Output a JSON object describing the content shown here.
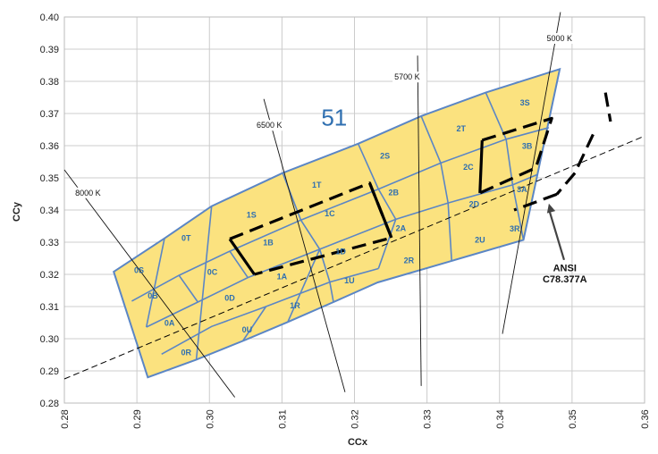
{
  "chart_data": {
    "type": "scatter",
    "title": "",
    "xlabel": "CCx",
    "ylabel": "CCy",
    "xlim": [
      0.28,
      0.36
    ],
    "ylim": [
      0.28,
      0.4
    ],
    "grid": true,
    "x_ticks": [
      "0.28",
      "0.29",
      "0.30",
      "0.31",
      "0.32",
      "0.33",
      "0.34",
      "0.35",
      "0.36"
    ],
    "y_ticks": [
      "0.28",
      "0.29",
      "0.30",
      "0.31",
      "0.32",
      "0.33",
      "0.34",
      "0.35",
      "0.36",
      "0.37",
      "0.38",
      "0.39",
      "0.40"
    ],
    "colors": {
      "bin_fill": "#fbe27f",
      "bin_stroke": "#5b86c5",
      "bin_label": "#2f6fb0",
      "grid": "#cccccc",
      "ansi_line": "#000000",
      "arrow": "#444444"
    },
    "outline": [
      [
        0.2868,
        0.3208
      ],
      [
        0.2938,
        0.3312
      ],
      [
        0.3003,
        0.3412
      ],
      [
        0.3101,
        0.3515
      ],
      [
        0.3205,
        0.3606
      ],
      [
        0.3292,
        0.3692
      ],
      [
        0.3381,
        0.3765
      ],
      [
        0.3483,
        0.3838
      ],
      [
        0.3448,
        0.3465
      ],
      [
        0.3433,
        0.3307
      ],
      [
        0.3334,
        0.3242
      ],
      [
        0.3232,
        0.3175
      ],
      [
        0.3171,
        0.3114
      ],
      [
        0.3108,
        0.3052
      ],
      [
        0.3046,
        0.2993
      ],
      [
        0.2982,
        0.2935
      ],
      [
        0.2915,
        0.288
      ],
      [
        0.2868,
        0.3208
      ]
    ],
    "bin_lines": [
      [
        [
          0.2893,
          0.3117
        ],
        [
          0.2958,
          0.3197
        ],
        [
          0.3028,
          0.3272
        ],
        [
          0.3126,
          0.3369
        ],
        [
          0.3233,
          0.3465
        ],
        [
          0.3319,
          0.3546
        ],
        [
          0.3409,
          0.362
        ],
        [
          0.3468,
          0.3656
        ]
      ],
      [
        [
          0.2913,
          0.3036
        ],
        [
          0.2984,
          0.3114
        ],
        [
          0.3053,
          0.319
        ],
        [
          0.3152,
          0.3278
        ],
        [
          0.3257,
          0.3371
        ],
        [
          0.3329,
          0.3422
        ],
        [
          0.3418,
          0.3478
        ],
        [
          0.3452,
          0.351
        ]
      ],
      [
        [
          0.2934,
          0.2952
        ],
        [
          0.3003,
          0.3038
        ],
        [
          0.3078,
          0.31
        ],
        [
          0.3166,
          0.3176
        ],
        [
          0.3233,
          0.3218
        ]
      ],
      [
        [
          0.2938,
          0.3312
        ],
        [
          0.2913,
          0.3036
        ]
      ],
      [
        [
          0.2984,
          0.3114
        ],
        [
          0.2958,
          0.3197
        ]
      ],
      [
        [
          0.3003,
          0.3412
        ],
        [
          0.2982,
          0.2935
        ]
      ],
      [
        [
          0.3053,
          0.319
        ],
        [
          0.3028,
          0.3272
        ]
      ],
      [
        [
          0.3046,
          0.2993
        ],
        [
          0.3078,
          0.31
        ]
      ],
      [
        [
          0.3101,
          0.3515
        ],
        [
          0.3126,
          0.3369
        ],
        [
          0.3152,
          0.3278
        ],
        [
          0.3166,
          0.3176
        ],
        [
          0.3171,
          0.3114
        ]
      ],
      [
        [
          0.3108,
          0.3052
        ],
        [
          0.3152,
          0.3278
        ]
      ],
      [
        [
          0.3205,
          0.3606
        ],
        [
          0.3233,
          0.3465
        ],
        [
          0.3257,
          0.3371
        ],
        [
          0.3233,
          0.3218
        ]
      ],
      [
        [
          0.3292,
          0.3692
        ],
        [
          0.3319,
          0.3546
        ],
        [
          0.3329,
          0.3422
        ],
        [
          0.3334,
          0.3242
        ]
      ],
      [
        [
          0.3381,
          0.3765
        ],
        [
          0.3409,
          0.362
        ],
        [
          0.3418,
          0.3478
        ],
        [
          0.3433,
          0.3307
        ]
      ]
    ],
    "ansi_quads": [
      [
        [
          0.3028,
          0.331
        ],
        [
          0.3221,
          0.3484
        ],
        [
          0.3251,
          0.3314
        ],
        [
          0.3062,
          0.32
        ]
      ],
      [
        [
          0.3376,
          0.3617
        ],
        [
          0.3472,
          0.3685
        ],
        [
          0.345,
          0.3531
        ],
        [
          0.3373,
          0.3453
        ]
      ],
      [
        [
          0.3546,
          0.3765
        ],
        [
          0.3553,
          0.3675
        ]
      ],
      [
        [
          0.3529,
          0.3635
        ],
        [
          0.3504,
          0.3515
        ]
      ],
      [
        [
          0.3504,
          0.3515
        ],
        [
          0.3479,
          0.3449
        ]
      ],
      [
        [
          0.3479,
          0.3449
        ],
        [
          0.342,
          0.34
        ]
      ]
    ],
    "ansi_dashes": [
      [
        [
          0.3028,
          0.331
        ],
        [
          0.3062,
          0.32
        ]
      ],
      [
        [
          0.3221,
          0.3484
        ],
        [
          0.3251,
          0.3314
        ]
      ],
      [
        [
          0.3376,
          0.3617
        ],
        [
          0.3373,
          0.3453
        ]
      ]
    ],
    "planckian": [
      [
        0.28,
        0.2875
      ],
      [
        0.36,
        0.363
      ]
    ],
    "isotherms": [
      {
        "label": "8000 K",
        "from": [
          0.28,
          0.3525
        ],
        "to": [
          0.3035,
          0.2818
        ],
        "label_at": [
          0.2815,
          0.3445
        ]
      },
      {
        "label": "6500 K",
        "from": [
          0.3075,
          0.3745
        ],
        "to": [
          0.3187,
          0.2834
        ],
        "label_at": [
          0.3065,
          0.3655
        ]
      },
      {
        "label": "5700 K",
        "from": [
          0.3287,
          0.388
        ],
        "to": [
          0.3292,
          0.2853
        ],
        "label_at": [
          0.3255,
          0.3805
        ]
      },
      {
        "label": "5000 K",
        "from": [
          0.3484,
          0.4015
        ],
        "to": [
          0.3404,
          0.3015
        ],
        "label_at": [
          0.3465,
          0.3925
        ]
      }
    ],
    "bins": [
      {
        "label": "0S",
        "at": [
          0.2903,
          0.3204
        ]
      },
      {
        "label": "0B",
        "at": [
          0.2922,
          0.3125
        ]
      },
      {
        "label": "0A",
        "at": [
          0.2945,
          0.304
        ]
      },
      {
        "label": "0R",
        "at": [
          0.2968,
          0.2948
        ]
      },
      {
        "label": "0T",
        "at": [
          0.2968,
          0.3304
        ]
      },
      {
        "label": "0C",
        "at": [
          0.3004,
          0.3198
        ]
      },
      {
        "label": "0D",
        "at": [
          0.3028,
          0.3118
        ]
      },
      {
        "label": "0U",
        "at": [
          0.3052,
          0.302
        ]
      },
      {
        "label": "1S",
        "at": [
          0.3058,
          0.3377
        ]
      },
      {
        "label": "1B",
        "at": [
          0.3081,
          0.329
        ]
      },
      {
        "label": "1A",
        "at": [
          0.31,
          0.3185
        ]
      },
      {
        "label": "1R",
        "at": [
          0.3118,
          0.3095
        ]
      },
      {
        "label": "1T",
        "at": [
          0.3148,
          0.347
        ]
      },
      {
        "label": "1C",
        "at": [
          0.3166,
          0.338
        ]
      },
      {
        "label": "1D",
        "at": [
          0.3181,
          0.3262
        ]
      },
      {
        "label": "1U",
        "at": [
          0.3193,
          0.3172
        ]
      },
      {
        "label": "2S",
        "at": [
          0.3242,
          0.356
        ]
      },
      {
        "label": "2B",
        "at": [
          0.3254,
          0.3446
        ]
      },
      {
        "label": "2A",
        "at": [
          0.3264,
          0.3335
        ]
      },
      {
        "label": "2R",
        "at": [
          0.3275,
          0.3235
        ]
      },
      {
        "label": "2T",
        "at": [
          0.3347,
          0.3645
        ]
      },
      {
        "label": "2C",
        "at": [
          0.3357,
          0.3525
        ]
      },
      {
        "label": "2D",
        "at": [
          0.3365,
          0.341
        ]
      },
      {
        "label": "2U",
        "at": [
          0.3373,
          0.3298
        ]
      },
      {
        "label": "3S",
        "at": [
          0.3435,
          0.3725
        ]
      },
      {
        "label": "3B",
        "at": [
          0.3438,
          0.359
        ]
      },
      {
        "label": "3A",
        "at": [
          0.3431,
          0.3455
        ]
      },
      {
        "label": "3R",
        "at": [
          0.3421,
          0.3333
        ]
      }
    ],
    "annotations": [
      {
        "text": "51",
        "at": [
          0.3172,
          0.3662
        ]
      },
      {
        "text": "ANSI",
        "at": [
          0.349,
          0.321
        ]
      },
      {
        "text": "C78.377A",
        "at": [
          0.349,
          0.3175
        ]
      }
    ],
    "arrow": {
      "from": [
        0.3489,
        0.3245
      ],
      "to": [
        0.3468,
        0.342
      ]
    }
  }
}
